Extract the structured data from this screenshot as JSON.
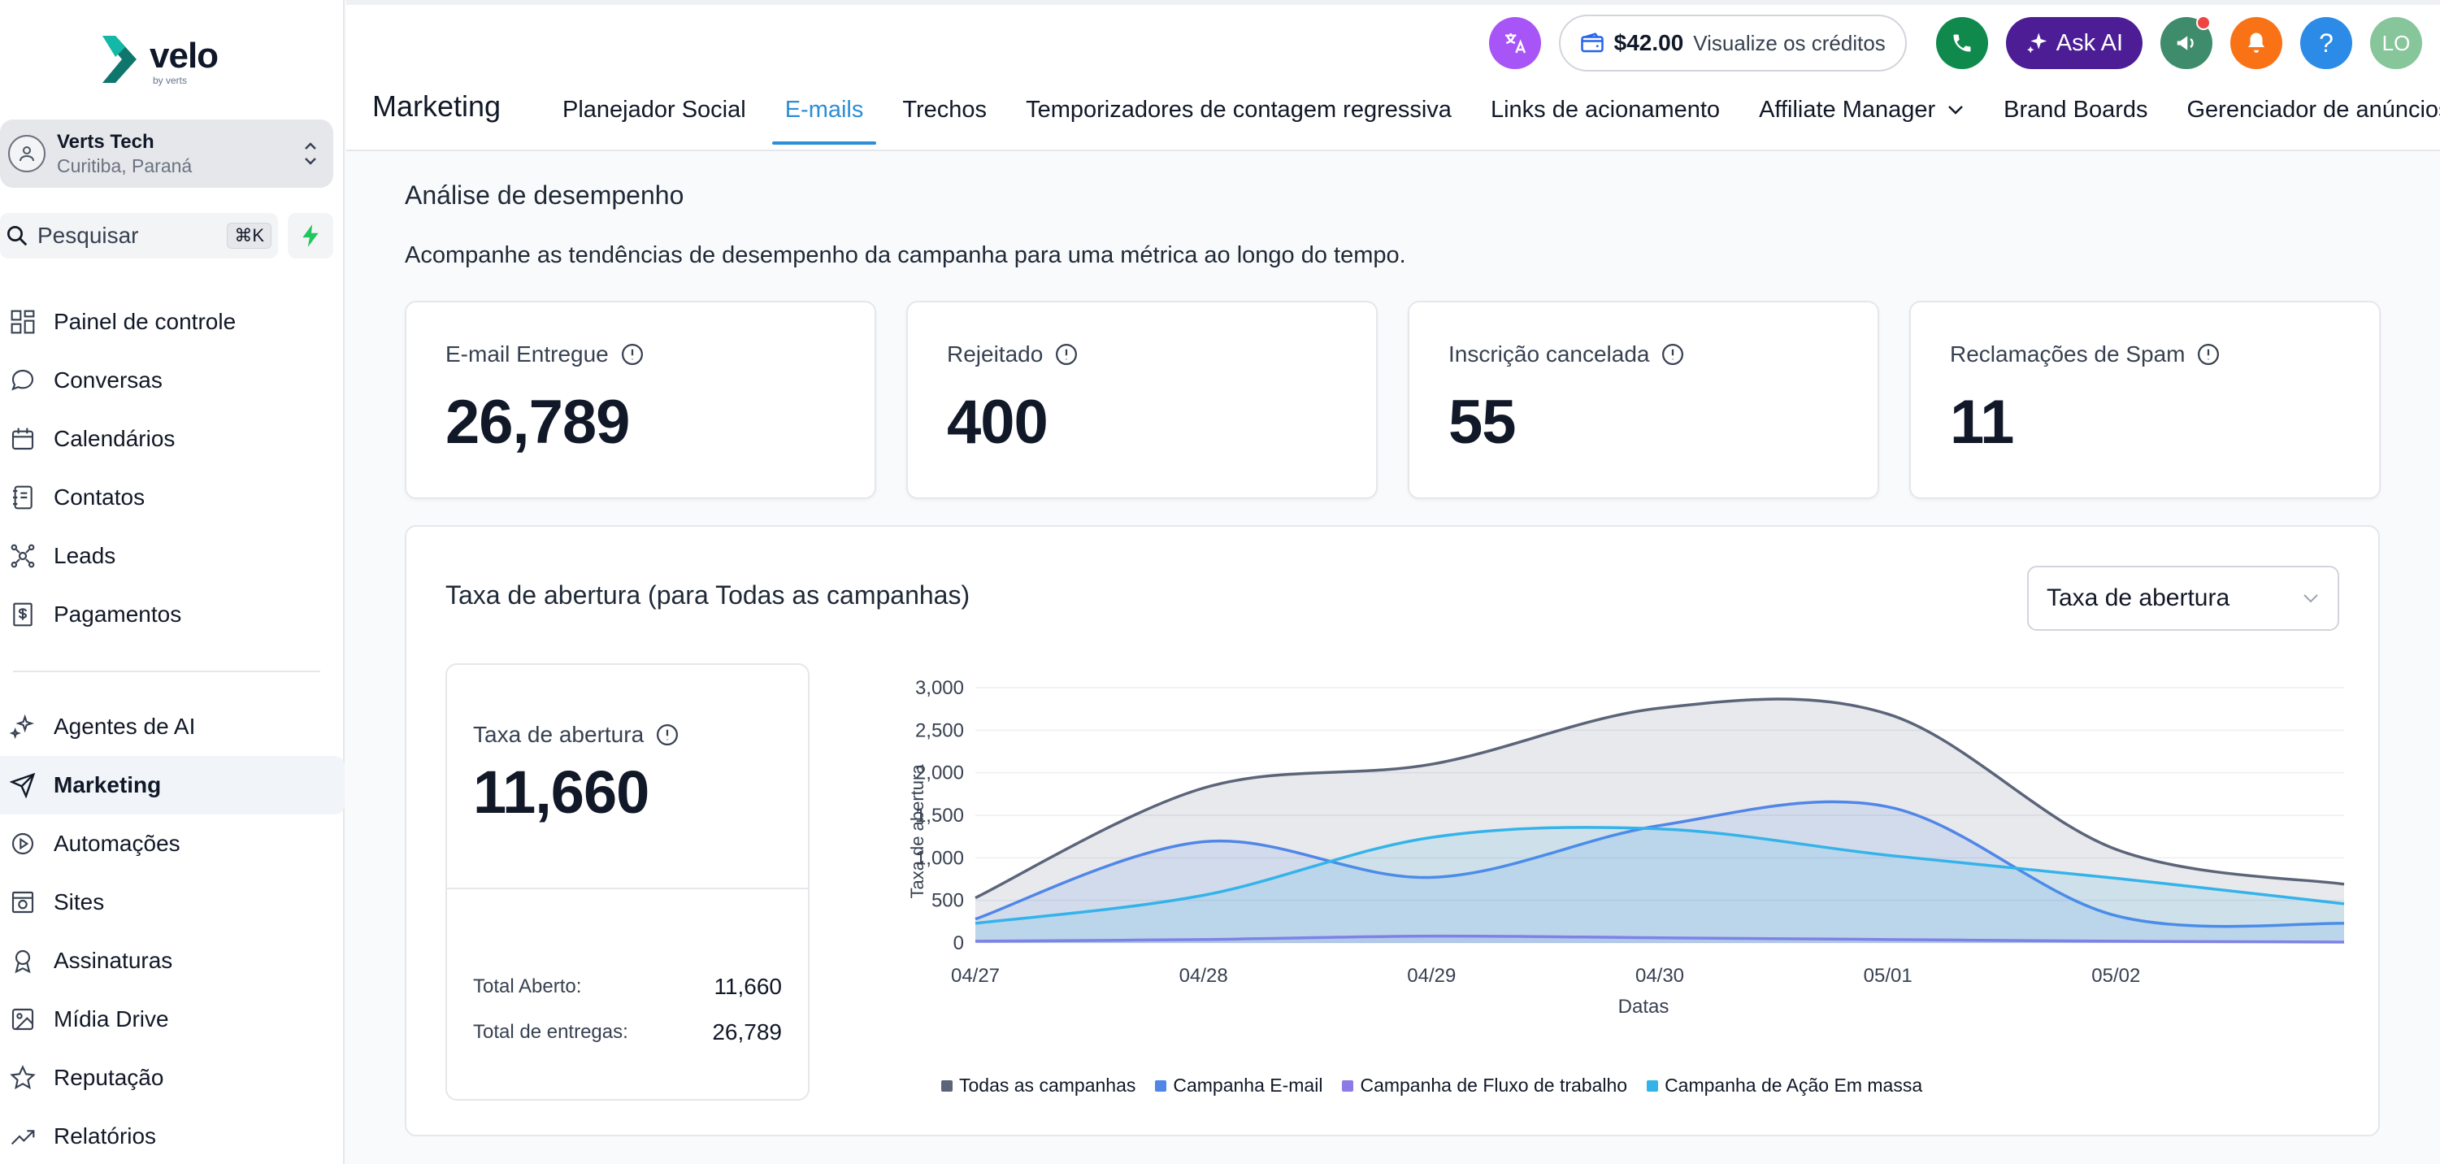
{
  "brand": {
    "name": "velo",
    "sub": "by verts"
  },
  "account": {
    "name": "Verts Tech",
    "location": "Curitiba, Paraná"
  },
  "search": {
    "placeholder": "Pesquisar",
    "shortcut": "⌘K"
  },
  "nav": {
    "primary": [
      {
        "label": "Painel de controle",
        "icon": "dashboard-icon"
      },
      {
        "label": "Conversas",
        "icon": "chat-icon"
      },
      {
        "label": "Calendários",
        "icon": "calendar-icon"
      },
      {
        "label": "Contatos",
        "icon": "contacts-icon"
      },
      {
        "label": "Leads",
        "icon": "leads-icon"
      },
      {
        "label": "Pagamentos",
        "icon": "payments-icon"
      }
    ],
    "secondary": [
      {
        "label": "Agentes de AI",
        "icon": "sparkles-icon"
      },
      {
        "label": "Marketing",
        "icon": "send-icon",
        "active": true
      },
      {
        "label": "Automações",
        "icon": "automation-icon"
      },
      {
        "label": "Sites",
        "icon": "sites-icon"
      },
      {
        "label": "Assinaturas",
        "icon": "badge-icon"
      },
      {
        "label": "Mídia Drive",
        "icon": "image-icon"
      },
      {
        "label": "Reputação",
        "icon": "star-icon"
      },
      {
        "label": "Relatórios",
        "icon": "trend-icon"
      }
    ]
  },
  "header": {
    "credits_amount": "$42.00",
    "credits_label": "Visualize os créditos",
    "ask_ai": "Ask AI",
    "avatar_initials": "LO",
    "help": "?"
  },
  "page": {
    "title": "Marketing",
    "tabs": [
      {
        "label": "Planejador Social"
      },
      {
        "label": "E-mails",
        "active": true
      },
      {
        "label": "Trechos"
      },
      {
        "label": "Temporizadores de contagem regressiva"
      },
      {
        "label": "Links de acionamento"
      },
      {
        "label": "Affiliate Manager",
        "dropdown": true
      },
      {
        "label": "Brand Boards"
      },
      {
        "label": "Gerenciador de anúncios"
      }
    ]
  },
  "performance": {
    "title": "Análise de desempenho",
    "description": "Acompanhe as tendências de desempenho da campanha para uma métrica ao longo do tempo.",
    "kpis": [
      {
        "label": "E-mail Entregue",
        "value": "26,789"
      },
      {
        "label": "Rejeitado",
        "value": "400"
      },
      {
        "label": "Inscrição cancelada",
        "value": "55"
      },
      {
        "label": "Reclamações de Spam",
        "value": "11"
      }
    ]
  },
  "open_rate": {
    "title": "Taxa de abertura (para Todas as campanhas)",
    "selected_metric": "Taxa de abertura",
    "summary_label": "Taxa de abertura",
    "summary_value": "11,660",
    "total_opened_label": "Total Aberto:",
    "total_opened_value": "11,660",
    "total_delivered_label": "Total de entregas:",
    "total_delivered_value": "26,789"
  },
  "chart_data": {
    "type": "area",
    "x": [
      "04/27",
      "04/28",
      "04/29",
      "04/30",
      "05/01",
      "05/02",
      ""
    ],
    "xlabel": "Datas",
    "ylabel": "Taxa de abertura",
    "ylim": [
      0,
      3000
    ],
    "yticks": [
      0,
      500,
      1000,
      1500,
      2000,
      2500,
      3000
    ],
    "ytick_labels": [
      "0",
      "500",
      "1,000",
      "1,500",
      "2,000",
      "2,500",
      "3,000"
    ],
    "legend_position": "bottom",
    "grid": true,
    "series": [
      {
        "name": "Todas as campanhas",
        "color": "#5b6478",
        "values": [
          530,
          1820,
          2100,
          2760,
          2690,
          1100,
          690
        ]
      },
      {
        "name": "Campanha E-mail",
        "color": "#4f86e8",
        "values": [
          280,
          1190,
          770,
          1380,
          1600,
          320,
          230
        ]
      },
      {
        "name": "Campanha de Fluxo de trabalho",
        "color": "#8b7be6",
        "values": [
          20,
          40,
          80,
          60,
          40,
          20,
          10
        ]
      },
      {
        "name": "Campanha de Ação Em massa",
        "color": "#34b3ea",
        "values": [
          230,
          560,
          1240,
          1340,
          1030,
          760,
          460
        ]
      }
    ]
  },
  "colors": {
    "accent": "#2b8ed6",
    "ask_ai_bg": "#4c1d95",
    "phone_bg": "#0f8a4c",
    "announce_bg": "#3e8c6b",
    "bell_bg": "#f97316",
    "help_bg": "#2b8be6",
    "translate_bg": "#a855f7"
  }
}
